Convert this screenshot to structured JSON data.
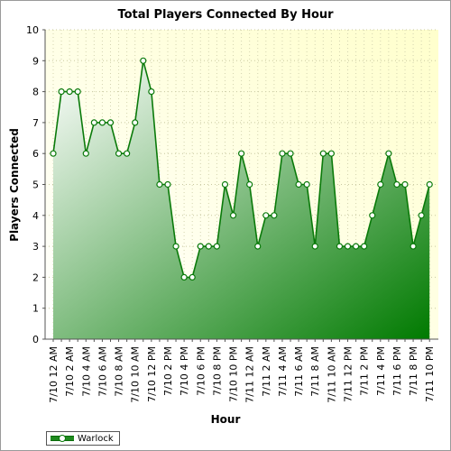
{
  "chart_data": {
    "type": "area",
    "title": "Total Players Connected By Hour",
    "xlabel": "Hour",
    "ylabel": "Players Connected",
    "ylim": [
      0,
      10
    ],
    "yticks": [
      "0",
      "1",
      "2",
      "3",
      "4",
      "5",
      "6",
      "7",
      "8",
      "9",
      "10"
    ],
    "grid": true,
    "legend": "bottom-left",
    "x": [
      "7/10 12 AM",
      "7/10 1 AM",
      "7/10 2 AM",
      "7/10 3 AM",
      "7/10 4 AM",
      "7/10 5 AM",
      "7/10 6 AM",
      "7/10 7 AM",
      "7/10 8 AM",
      "7/10 9 AM",
      "7/10 10 AM",
      "7/10 11 AM",
      "7/10 12 PM",
      "7/10 1 PM",
      "7/10 2 PM",
      "7/10 3 PM",
      "7/10 4 PM",
      "7/10 5 PM",
      "7/10 6 PM",
      "7/10 7 PM",
      "7/10 8 PM",
      "7/10 9 PM",
      "7/10 10 PM",
      "7/10 11 PM",
      "7/11 12 AM",
      "7/11 1 AM",
      "7/11 2 AM",
      "7/11 3 AM",
      "7/11 4 AM",
      "7/11 5 AM",
      "7/11 6 AM",
      "7/11 7 AM",
      "7/11 8 AM",
      "7/11 9 AM",
      "7/11 10 AM",
      "7/11 11 AM",
      "7/11 12 PM",
      "7/11 1 PM",
      "7/11 2 PM",
      "7/11 3 PM",
      "7/11 4 PM",
      "7/11 5 PM",
      "7/11 6 PM",
      "7/11 7 PM",
      "7/11 8 PM",
      "7/11 9 PM",
      "7/11 10 PM"
    ],
    "x_tick_labels": [
      "7/10 12 AM",
      "7/10 2 AM",
      "7/10 4 AM",
      "7/10 6 AM",
      "7/10 8 AM",
      "7/10 10 AM",
      "7/10 12 PM",
      "7/10 2 PM",
      "7/10 4 PM",
      "7/10 6 PM",
      "7/10 8 PM",
      "7/10 10 PM",
      "7/11 12 AM",
      "7/11 2 AM",
      "7/11 4 AM",
      "7/11 6 AM",
      "7/11 8 AM",
      "7/11 10 AM",
      "7/11 12 PM",
      "7/11 2 PM",
      "7/11 4 PM",
      "7/11 6 PM",
      "7/11 8 PM",
      "7/11 10 PM"
    ],
    "series": [
      {
        "name": "Warlock",
        "color": "#1e8a1e",
        "values": [
          6,
          8,
          8,
          8,
          6,
          7,
          7,
          7,
          6,
          6,
          7,
          9,
          8,
          5,
          5,
          3,
          2,
          2,
          3,
          3,
          3,
          5,
          4,
          6,
          5,
          3,
          4,
          4,
          6,
          6,
          5,
          5,
          3,
          6,
          6,
          3,
          3,
          3,
          3,
          4,
          5,
          6,
          5,
          5,
          3,
          4,
          5
        ]
      }
    ]
  }
}
